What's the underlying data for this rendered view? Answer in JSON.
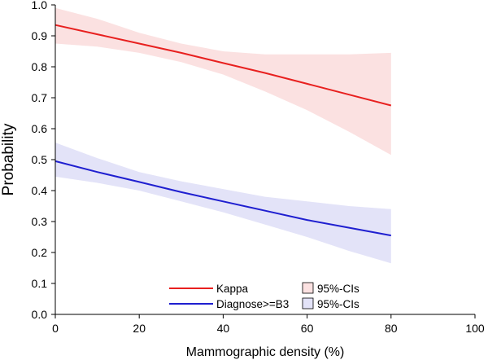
{
  "chart_data": {
    "type": "line",
    "title": "",
    "xlabel": "Mammographic density (%)",
    "ylabel": "Probability",
    "xlim": [
      0,
      100
    ],
    "ylim": [
      0,
      1
    ],
    "x_ticks": [
      0,
      20,
      40,
      60,
      80,
      100
    ],
    "y_ticks": [
      0.0,
      0.1,
      0.2,
      0.3,
      0.4,
      0.5,
      0.6,
      0.7,
      0.8,
      0.9,
      1.0
    ],
    "y_tick_labels": [
      "0.0",
      "0.1",
      "0.2",
      "0.3",
      "0.4",
      "0.5",
      "0.6",
      "0.7",
      "0.8",
      "0.9",
      "1.0"
    ],
    "x_tick_labels": [
      "0",
      "20",
      "40",
      "60",
      "80",
      "100"
    ],
    "legend_position": "bottom-center",
    "series": [
      {
        "name": "Kappa",
        "ci_name": "95%-CIs",
        "line_color": "#e8201f",
        "band_color": "#fbe1e1",
        "x": [
          0,
          10,
          20,
          30,
          40,
          50,
          60,
          70,
          80
        ],
        "values": [
          0.935,
          0.905,
          0.875,
          0.845,
          0.812,
          0.78,
          0.745,
          0.71,
          0.675
        ],
        "lower": [
          0.875,
          0.865,
          0.845,
          0.815,
          0.775,
          0.72,
          0.66,
          0.59,
          0.515
        ],
        "upper": [
          0.99,
          0.955,
          0.91,
          0.875,
          0.85,
          0.84,
          0.84,
          0.84,
          0.845
        ]
      },
      {
        "name": "Diagnose>=B3",
        "ci_name": "95%-CIs",
        "line_color": "#1f1fd0",
        "band_color": "#e3e3f8",
        "x": [
          0,
          10,
          20,
          30,
          40,
          50,
          60,
          70,
          80
        ],
        "values": [
          0.495,
          0.46,
          0.428,
          0.395,
          0.365,
          0.335,
          0.305,
          0.28,
          0.255
        ],
        "lower": [
          0.445,
          0.425,
          0.4,
          0.365,
          0.33,
          0.29,
          0.25,
          0.205,
          0.165
        ],
        "upper": [
          0.555,
          0.505,
          0.46,
          0.43,
          0.405,
          0.38,
          0.365,
          0.35,
          0.34
        ]
      }
    ]
  }
}
